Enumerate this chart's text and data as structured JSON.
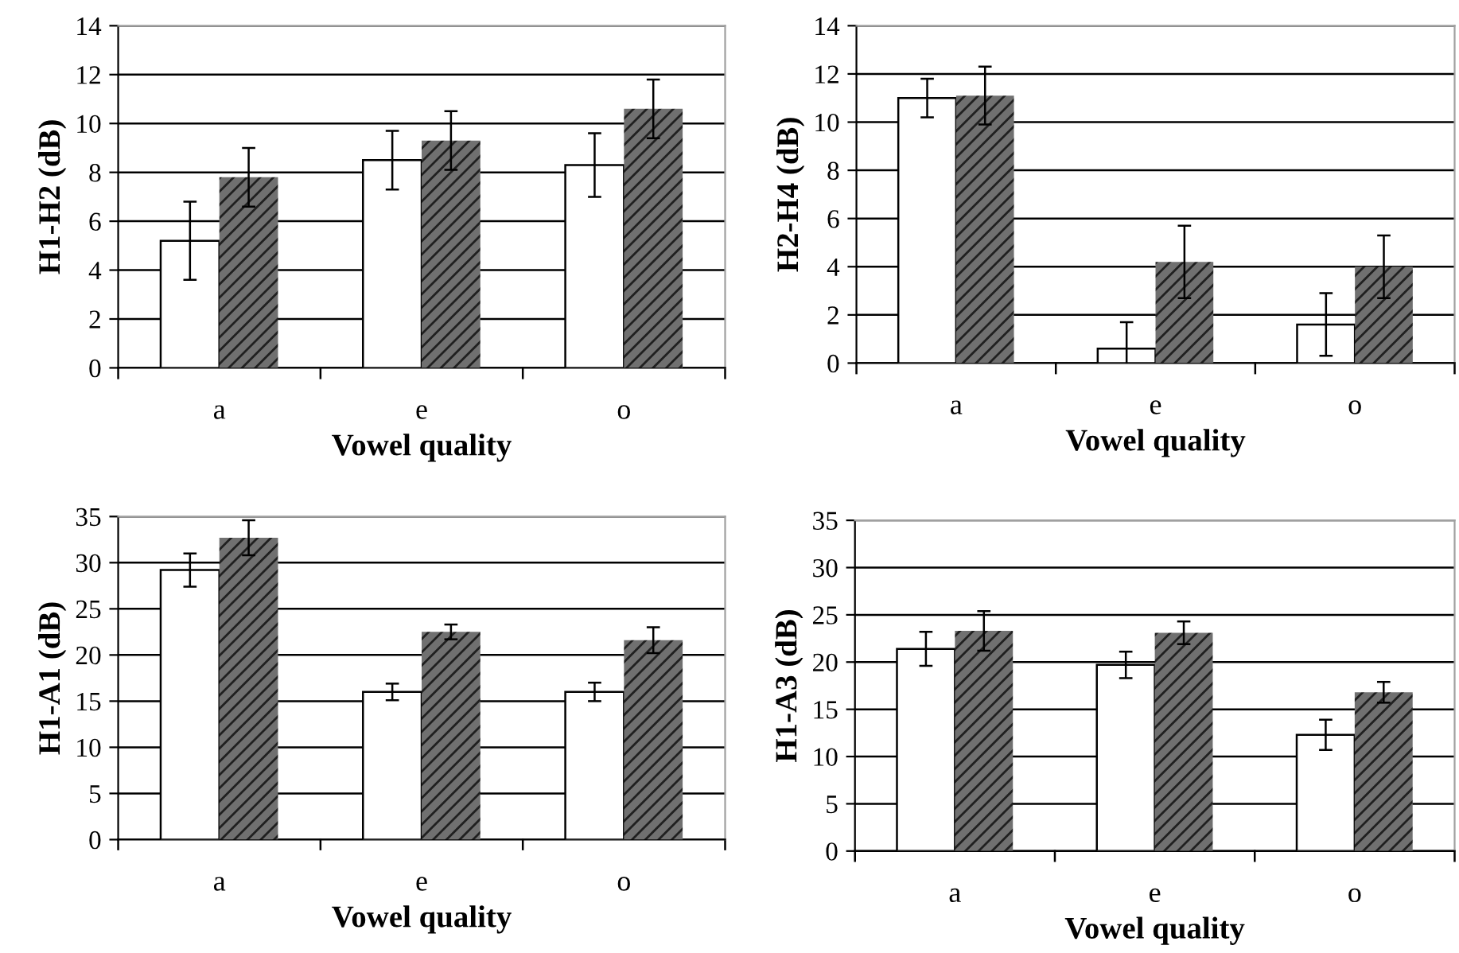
{
  "chart_data": [
    {
      "type": "bar",
      "ylabel": "H1-H2 (dB)",
      "xlabel": "Vowel quality",
      "categories": [
        "a",
        "e",
        "o"
      ],
      "ylim": [
        0,
        14
      ],
      "yticks": [
        0,
        2,
        4,
        6,
        8,
        10,
        12,
        14
      ],
      "grid": "y",
      "series": [
        {
          "color": "#ffffff",
          "values": [
            5.2,
            8.5,
            8.3
          ],
          "errors": [
            1.6,
            1.2,
            1.3
          ]
        },
        {
          "color": "#707070",
          "values": [
            7.8,
            9.3,
            10.6
          ],
          "errors": [
            1.2,
            1.2,
            1.2
          ]
        }
      ]
    },
    {
      "type": "bar",
      "ylabel": "H2-H4 (dB)",
      "xlabel": "Vowel quality",
      "categories": [
        "a",
        "e",
        "o"
      ],
      "ylim": [
        0,
        14
      ],
      "yticks": [
        0,
        2,
        4,
        6,
        8,
        10,
        12,
        14
      ],
      "grid": "y",
      "series": [
        {
          "color": "#ffffff",
          "values": [
            11.0,
            0.6,
            1.6
          ],
          "errors": [
            0.8,
            1.1,
            1.3
          ]
        },
        {
          "color": "#707070",
          "values": [
            11.1,
            4.2,
            4.0
          ],
          "errors": [
            1.2,
            1.5,
            1.3
          ]
        }
      ]
    },
    {
      "type": "bar",
      "ylabel": "H1-A1 (dB)",
      "xlabel": "Vowel quality",
      "categories": [
        "a",
        "e",
        "o"
      ],
      "ylim": [
        0,
        35
      ],
      "yticks": [
        0,
        5,
        10,
        15,
        20,
        25,
        30,
        35
      ],
      "grid": "y",
      "series": [
        {
          "color": "#ffffff",
          "values": [
            29.2,
            16.0,
            16.0
          ],
          "errors": [
            1.8,
            0.9,
            1.0
          ]
        },
        {
          "color": "#707070",
          "values": [
            32.7,
            22.5,
            21.6
          ],
          "errors": [
            1.9,
            0.8,
            1.4
          ]
        }
      ]
    },
    {
      "type": "bar",
      "ylabel": "H1-A3 (dB)",
      "xlabel": "Vowel quality",
      "categories": [
        "a",
        "e",
        "o"
      ],
      "ylim": [
        0,
        35
      ],
      "yticks": [
        0,
        5,
        10,
        15,
        20,
        25,
        30,
        35
      ],
      "grid": "y",
      "series": [
        {
          "color": "#ffffff",
          "values": [
            21.4,
            19.7,
            12.3
          ],
          "errors": [
            1.8,
            1.4,
            1.6
          ]
        },
        {
          "color": "#707070",
          "values": [
            23.3,
            23.1,
            16.8
          ],
          "errors": [
            2.1,
            1.2,
            1.1
          ]
        }
      ]
    }
  ]
}
